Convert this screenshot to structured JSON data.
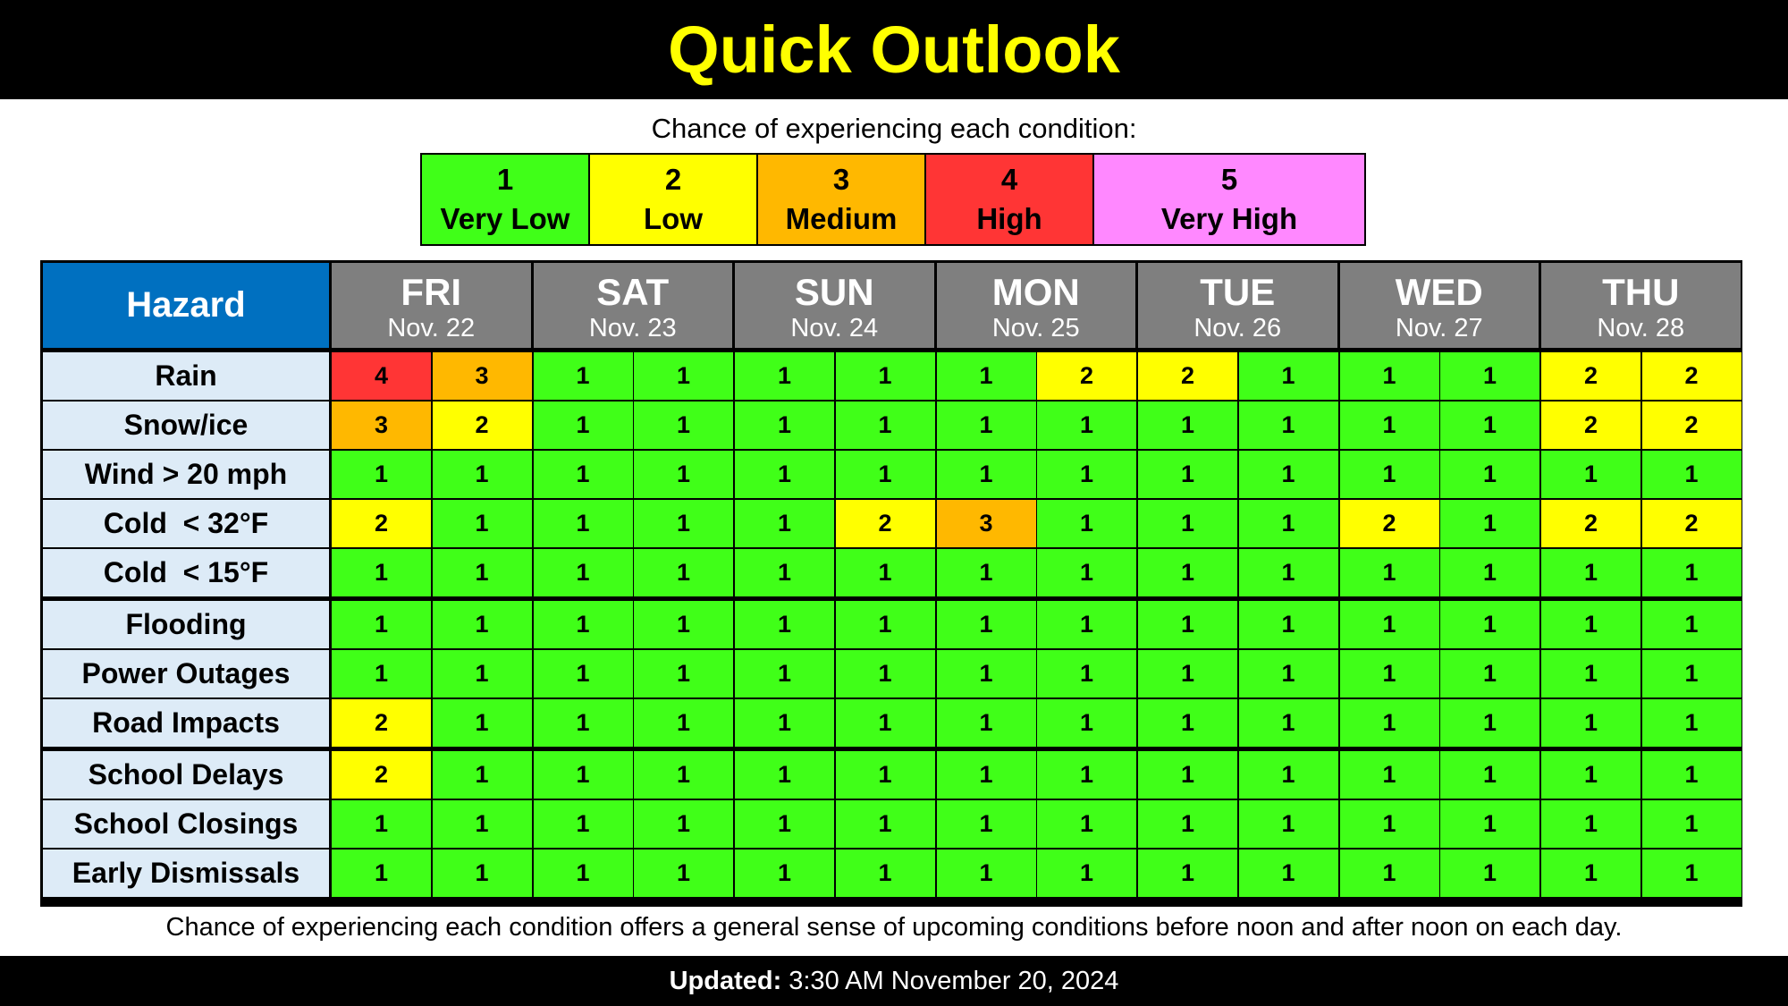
{
  "title": "Quick Outlook",
  "legend": {
    "caption": "Chance of experiencing each condition:",
    "levels": [
      {
        "num": "1",
        "label": "Very Low",
        "color": "#40ff18"
      },
      {
        "num": "2",
        "label": "Low",
        "color": "#ffff00"
      },
      {
        "num": "3",
        "label": "Medium",
        "color": "#ffb800"
      },
      {
        "num": "4",
        "label": "High",
        "color": "#ff3535"
      },
      {
        "num": "5",
        "label": "Very High",
        "color": "#ff88ff"
      }
    ]
  },
  "table": {
    "hazard_header": "Hazard",
    "days": [
      {
        "name": "FRI",
        "date": "Nov. 22"
      },
      {
        "name": "SAT",
        "date": "Nov. 23"
      },
      {
        "name": "SUN",
        "date": "Nov. 24"
      },
      {
        "name": "MON",
        "date": "Nov. 25"
      },
      {
        "name": "TUE",
        "date": "Nov. 26"
      },
      {
        "name": "WED",
        "date": "Nov. 27"
      },
      {
        "name": "THU",
        "date": "Nov. 28"
      }
    ],
    "rows": [
      {
        "hazard": "Rain",
        "values": [
          4,
          3,
          1,
          1,
          1,
          1,
          1,
          2,
          2,
          1,
          1,
          1,
          2,
          2
        ]
      },
      {
        "hazard": "Snow/ice",
        "values": [
          3,
          2,
          1,
          1,
          1,
          1,
          1,
          1,
          1,
          1,
          1,
          1,
          2,
          2
        ]
      },
      {
        "hazard": "Wind > 20 mph",
        "values": [
          1,
          1,
          1,
          1,
          1,
          1,
          1,
          1,
          1,
          1,
          1,
          1,
          1,
          1
        ]
      },
      {
        "hazard": "Cold  < 32°F",
        "values": [
          2,
          1,
          1,
          1,
          1,
          2,
          3,
          1,
          1,
          1,
          2,
          1,
          2,
          2
        ]
      },
      {
        "hazard": "Cold  < 15°F",
        "values": [
          1,
          1,
          1,
          1,
          1,
          1,
          1,
          1,
          1,
          1,
          1,
          1,
          1,
          1
        ]
      },
      {
        "hazard": "Flooding",
        "values": [
          1,
          1,
          1,
          1,
          1,
          1,
          1,
          1,
          1,
          1,
          1,
          1,
          1,
          1
        ]
      },
      {
        "hazard": "Power Outages",
        "values": [
          1,
          1,
          1,
          1,
          1,
          1,
          1,
          1,
          1,
          1,
          1,
          1,
          1,
          1
        ]
      },
      {
        "hazard": "Road Impacts",
        "values": [
          2,
          1,
          1,
          1,
          1,
          1,
          1,
          1,
          1,
          1,
          1,
          1,
          1,
          1
        ]
      },
      {
        "hazard": "School Delays",
        "values": [
          2,
          1,
          1,
          1,
          1,
          1,
          1,
          1,
          1,
          1,
          1,
          1,
          1,
          1
        ]
      },
      {
        "hazard": "School Closings",
        "values": [
          1,
          1,
          1,
          1,
          1,
          1,
          1,
          1,
          1,
          1,
          1,
          1,
          1,
          1
        ]
      },
      {
        "hazard": "Early Dismissals",
        "values": [
          1,
          1,
          1,
          1,
          1,
          1,
          1,
          1,
          1,
          1,
          1,
          1,
          1,
          1
        ]
      }
    ]
  },
  "footnote": "Chance of experiencing each condition offers a general sense of upcoming conditions before noon and after noon on each day.",
  "updated": {
    "label": "Updated:",
    "value": "3:30 AM November 20, 2024"
  }
}
